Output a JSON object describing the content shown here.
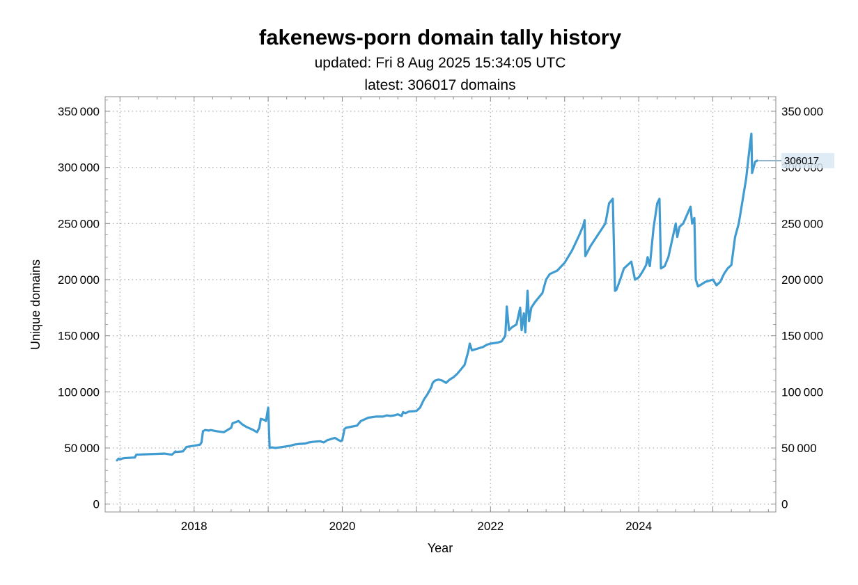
{
  "chart_data": {
    "type": "line",
    "title": "fakenews-porn domain tally history",
    "subtitle_lines": [
      "updated: Fri 8 Aug 2025 15:34:05 UTC",
      "latest: 306017 domains"
    ],
    "xlabel": "Year",
    "ylabel": "Unique domains",
    "xlim": [
      2016.8,
      2025.85
    ],
    "ylim": [
      -7000,
      363000
    ],
    "x_ticks": [
      2018,
      2020,
      2022,
      2024
    ],
    "x_tick_labels": [
      "2018",
      "2020",
      "2022",
      "2024"
    ],
    "y_ticks": [
      0,
      50000,
      100000,
      150000,
      200000,
      250000,
      300000,
      350000
    ],
    "y_tick_labels": [
      "0",
      "50 000",
      "100 000",
      "150 000",
      "200 000",
      "250 000",
      "300 000",
      "350 000"
    ],
    "grid": true,
    "line_color": "#3f9bd0",
    "callout": {
      "label": "306017",
      "value": 306017
    },
    "series": [
      {
        "x": [
          2016.96,
          2016.98,
          2017.0,
          2017.05,
          2017.2,
          2017.22,
          2017.4,
          2017.6,
          2017.7,
          2017.75,
          2017.76,
          2017.85,
          2017.9,
          2018.0,
          2018.08,
          2018.1,
          2018.12,
          2018.15,
          2018.2,
          2018.22,
          2018.3,
          2018.4,
          2018.5,
          2018.52,
          2018.6,
          2018.65,
          2018.7,
          2018.8,
          2018.85,
          2018.88,
          2018.9,
          2018.95,
          2018.97,
          2019.0,
          2019.02,
          2019.05,
          2019.1,
          2019.2,
          2019.3,
          2019.35,
          2019.4,
          2019.5,
          2019.55,
          2019.6,
          2019.7,
          2019.75,
          2019.8,
          2019.85,
          2019.9,
          2019.95,
          2019.98,
          2020.0,
          2020.03,
          2020.05,
          2020.2,
          2020.25,
          2020.35,
          2020.45,
          2020.55,
          2020.6,
          2020.65,
          2020.7,
          2020.75,
          2020.8,
          2020.82,
          2020.85,
          2020.9,
          2021.0,
          2021.05,
          2021.1,
          2021.12,
          2021.15,
          2021.2,
          2021.22,
          2021.25,
          2021.3,
          2021.35,
          2021.4,
          2021.45,
          2021.5,
          2021.55,
          2021.6,
          2021.65,
          2021.7,
          2021.72,
          2021.75,
          2021.8,
          2021.85,
          2021.9,
          2021.95,
          2022.0,
          2022.1,
          2022.15,
          2022.2,
          2022.22,
          2022.25,
          2022.28,
          2022.3,
          2022.35,
          2022.4,
          2022.42,
          2022.45,
          2022.47,
          2022.5,
          2022.52,
          2022.55,
          2022.57,
          2022.6,
          2022.7,
          2022.75,
          2022.8,
          2022.9,
          2023.0,
          2023.1,
          2023.2,
          2023.25,
          2023.27,
          2023.28,
          2023.35,
          2023.45,
          2023.55,
          2023.6,
          2023.65,
          2023.68,
          2023.7,
          2023.75,
          2023.8,
          2023.9,
          2023.95,
          2024.0,
          2024.05,
          2024.1,
          2024.12,
          2024.15,
          2024.2,
          2024.25,
          2024.28,
          2024.3,
          2024.35,
          2024.4,
          2024.45,
          2024.5,
          2024.52,
          2024.55,
          2024.6,
          2024.7,
          2024.72,
          2024.75,
          2024.77,
          2024.8,
          2024.9,
          2025.0,
          2025.05,
          2025.1,
          2025.15,
          2025.2,
          2025.25,
          2025.3,
          2025.35,
          2025.4,
          2025.45,
          2025.5,
          2025.52,
          2025.53,
          2025.55,
          2025.57,
          2025.6
        ],
        "y": [
          39000,
          40500,
          40000,
          41000,
          41500,
          44000,
          44500,
          45000,
          44000,
          47000,
          46500,
          47000,
          51000,
          52000,
          53000,
          55000,
          65000,
          66000,
          65500,
          66000,
          65000,
          64000,
          68000,
          72000,
          74000,
          71000,
          69000,
          66000,
          64000,
          68000,
          76000,
          75000,
          74000,
          86000,
          50000,
          50500,
          50000,
          51000,
          52000,
          53000,
          53500,
          54000,
          55000,
          55500,
          56000,
          55000,
          57000,
          58000,
          59000,
          57000,
          56000,
          57000,
          67000,
          68000,
          70000,
          74000,
          77000,
          78000,
          78000,
          79000,
          78500,
          79000,
          80000,
          78500,
          82000,
          81000,
          82500,
          83000,
          86000,
          93000,
          95000,
          98000,
          104000,
          108000,
          110000,
          111000,
          110000,
          108000,
          111000,
          113000,
          116000,
          120000,
          124000,
          136000,
          143000,
          137000,
          138000,
          139000,
          140000,
          142000,
          143000,
          144000,
          145000,
          150000,
          176000,
          155000,
          157000,
          158000,
          160000,
          175000,
          155000,
          170000,
          153000,
          190000,
          163000,
          175000,
          177000,
          180000,
          188000,
          200000,
          205000,
          208000,
          215000,
          226000,
          240000,
          248000,
          253000,
          221000,
          230000,
          240000,
          250000,
          268000,
          272000,
          190000,
          191000,
          200000,
          210000,
          216000,
          200000,
          202000,
          207000,
          213000,
          220000,
          212000,
          246000,
          268000,
          272000,
          210000,
          212000,
          220000,
          235000,
          250000,
          238000,
          247000,
          250000,
          265000,
          250000,
          255000,
          200000,
          194000,
          198000,
          200000,
          195000,
          198000,
          205000,
          210000,
          213000,
          238000,
          250000,
          270000,
          290000,
          320000,
          330000,
          295000,
          300000,
          305000,
          306017
        ]
      }
    ]
  }
}
